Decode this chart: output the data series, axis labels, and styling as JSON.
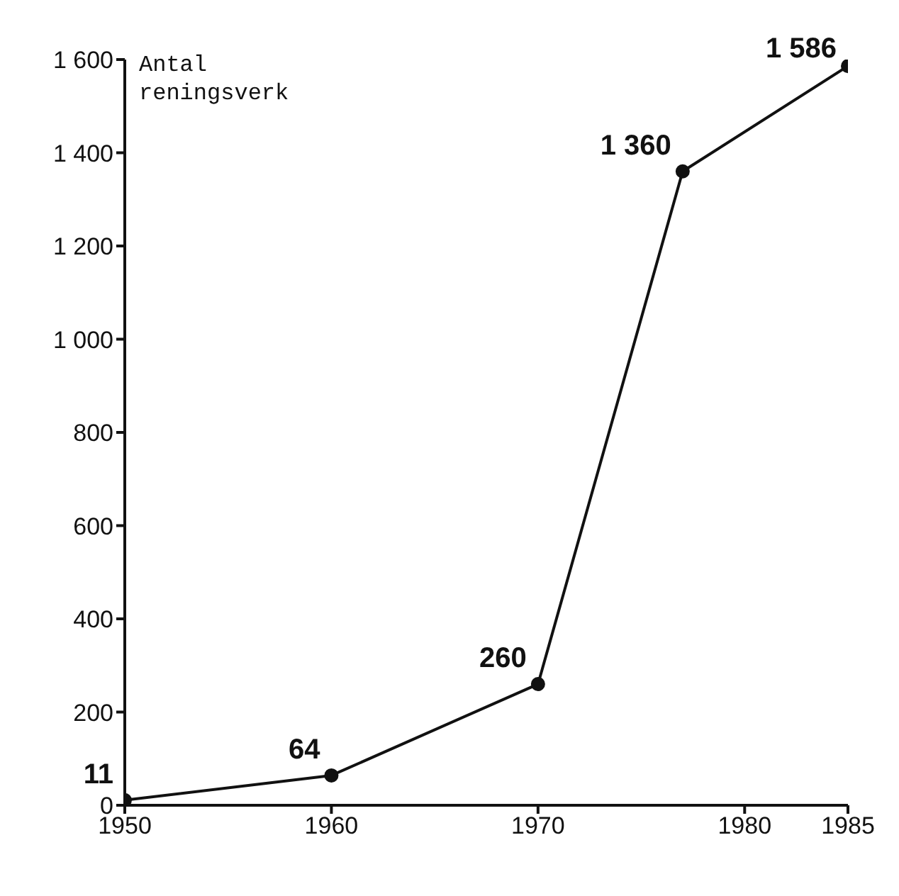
{
  "chart_data": {
    "type": "line",
    "ylabel": "Antal reningsverk",
    "x": [
      1950,
      1960,
      1970,
      1977,
      1985
    ],
    "series": [
      {
        "color": "#111111",
        "values": [
          11,
          64,
          260,
          1360,
          1586
        ],
        "value_labels": [
          "11",
          "64",
          "260",
          "1 360",
          "1 586"
        ]
      }
    ],
    "xlim": [
      1950,
      1985
    ],
    "xticks": [
      1950,
      1960,
      1970,
      1980,
      1985
    ],
    "ylim": [
      0,
      1600
    ],
    "yticks": [
      0,
      200,
      400,
      600,
      800,
      {
        "value": 1000,
        "label": "1 000"
      },
      {
        "value": 1200,
        "label": "1 200"
      },
      {
        "value": 1400,
        "label": "1 400"
      },
      {
        "value": 1600,
        "label": "1 600"
      }
    ],
    "grid": false,
    "legend": false,
    "marker": "circle",
    "line_style": "solid"
  }
}
